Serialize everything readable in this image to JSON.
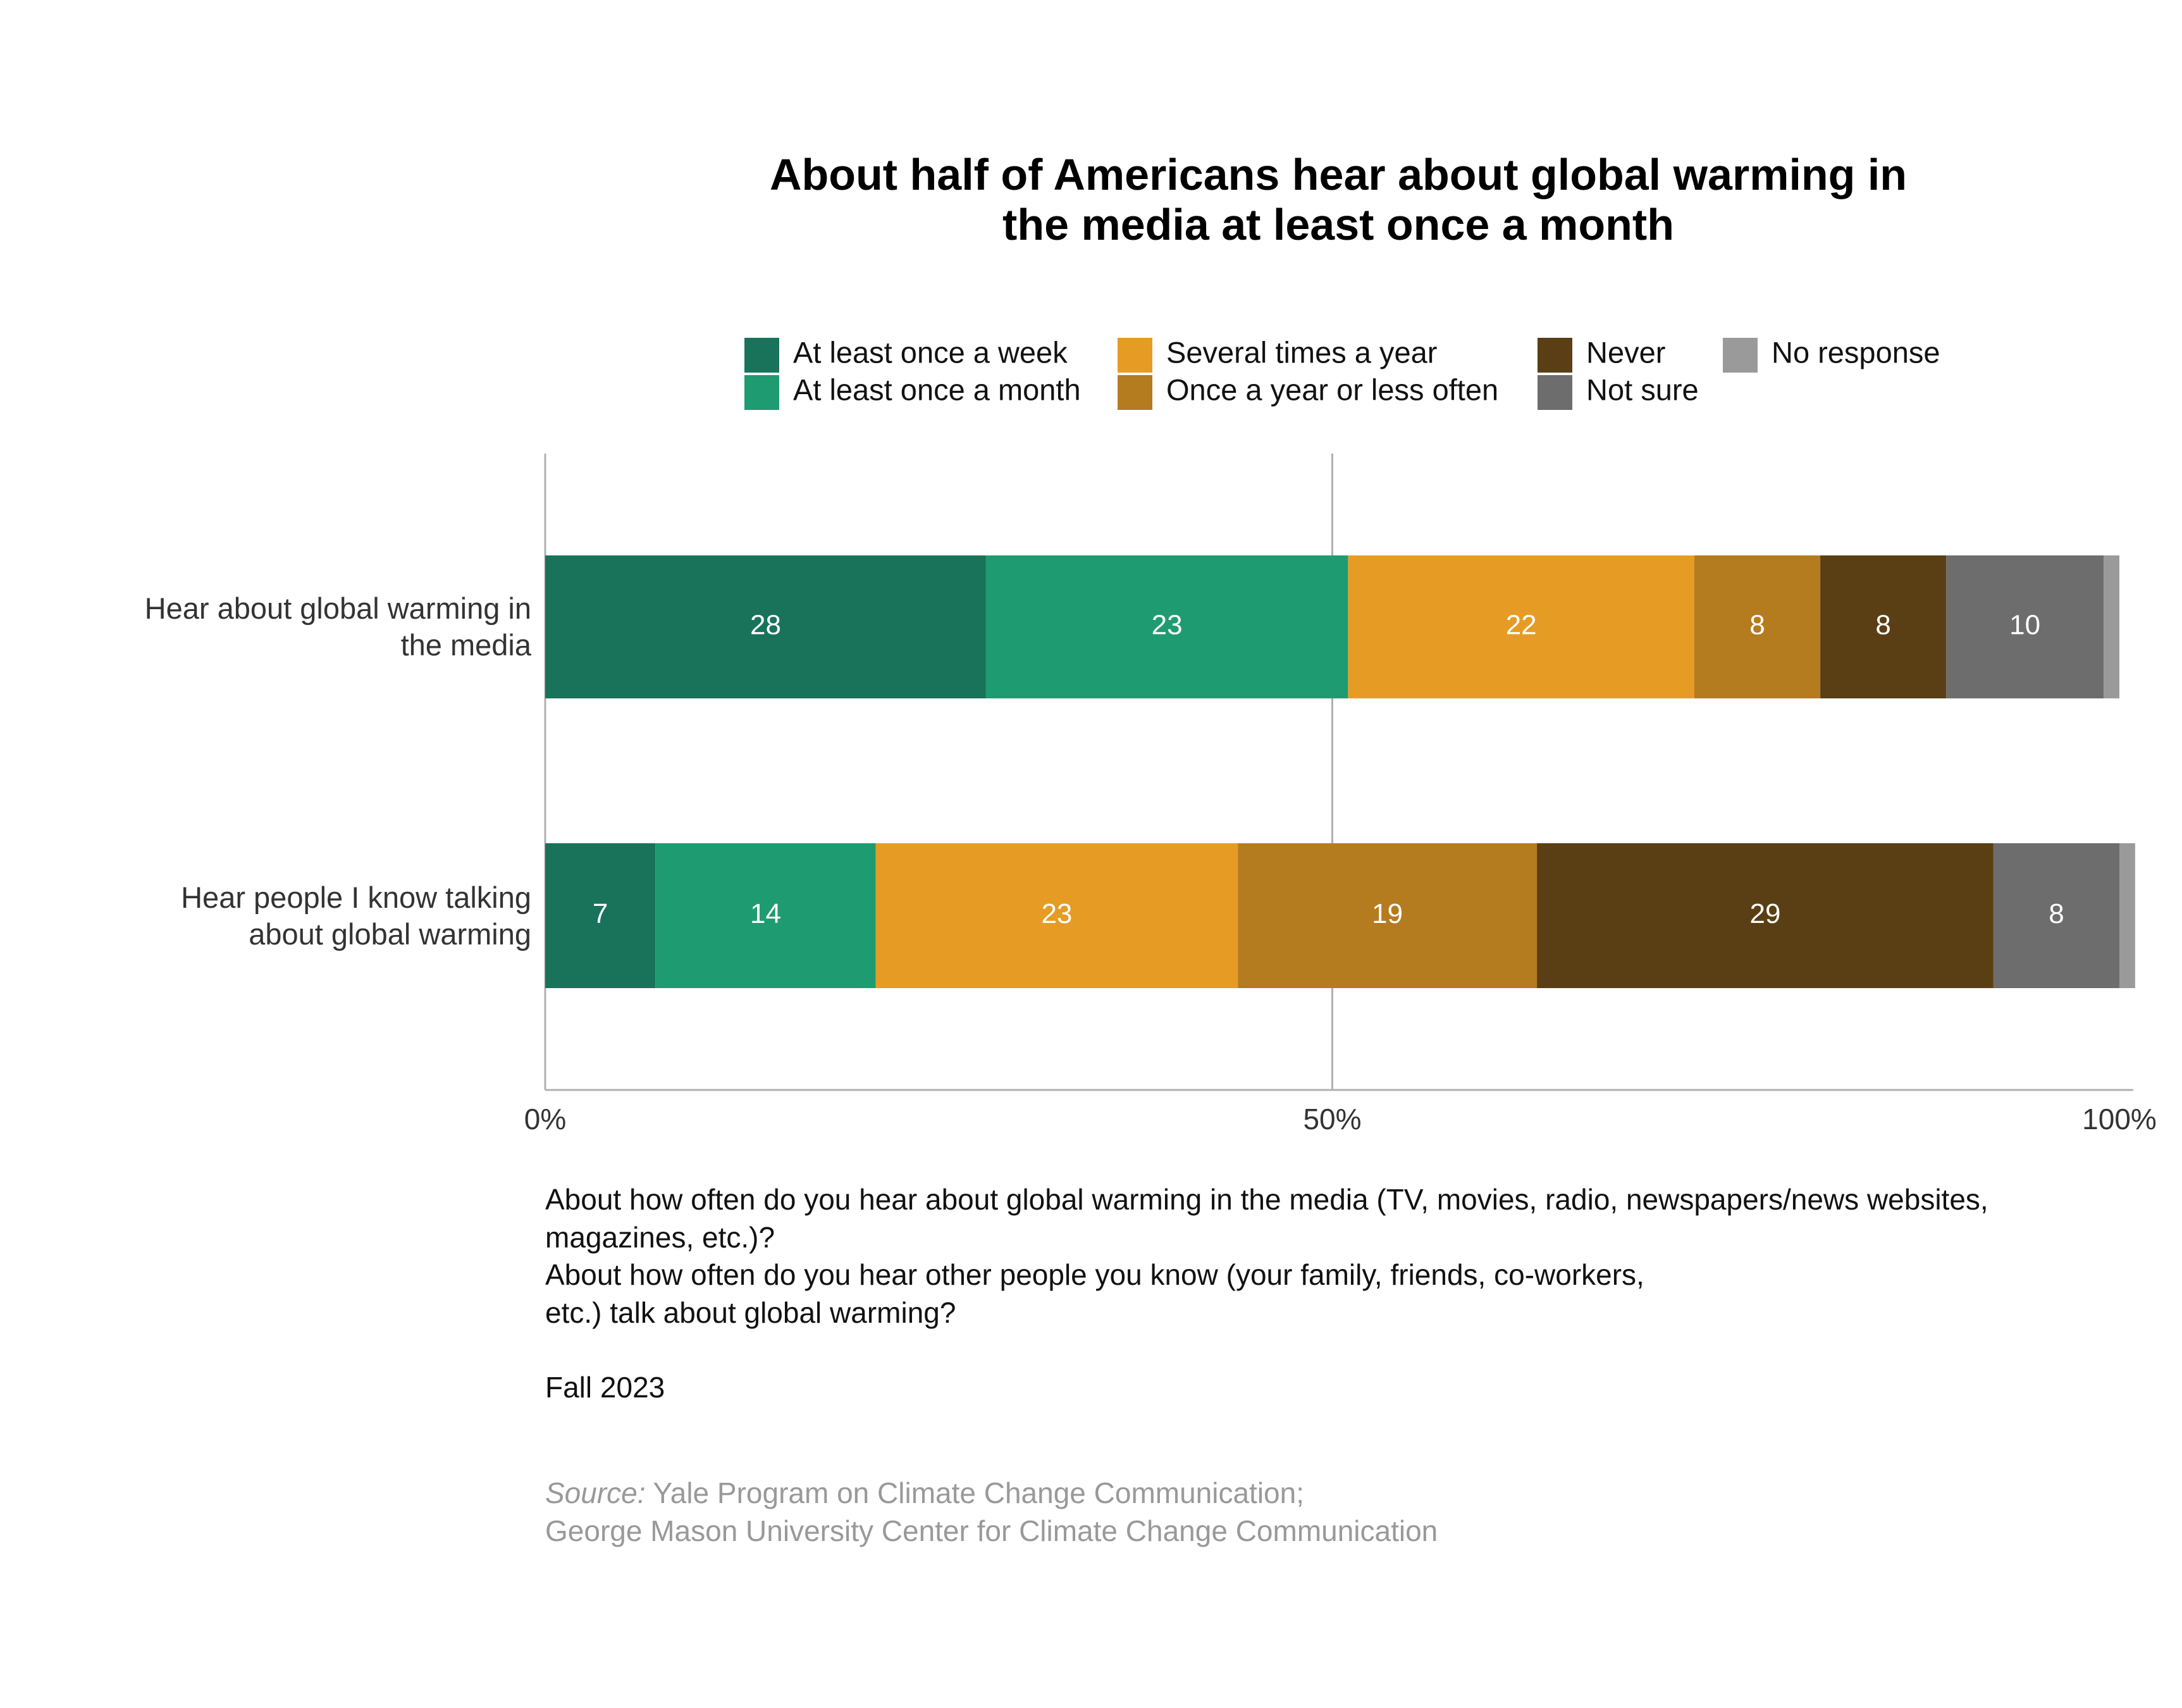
{
  "chart_data": {
    "type": "stacked-bar",
    "orientation": "horizontal",
    "title": "About half of Americans hear about global warming in the media at least once a month",
    "categories": [
      "Hear about global warming in\nthe media",
      "Hear people I know talking\nabout global warming"
    ],
    "series": [
      {
        "name": "At least once a week",
        "color": "#18735a",
        "values": [
          28,
          7
        ]
      },
      {
        "name": "At least once a month",
        "color": "#1f9b72",
        "values": [
          23,
          14
        ]
      },
      {
        "name": "Several times a year",
        "color": "#e69c24",
        "values": [
          22,
          23
        ]
      },
      {
        "name": "Once a year or less often",
        "color": "#b57b1f",
        "values": [
          8,
          19
        ]
      },
      {
        "name": "Never",
        "color": "#5a3f14",
        "values": [
          8,
          29
        ]
      },
      {
        "name": "Not sure",
        "color": "#6d6d6d",
        "values": [
          10,
          8
        ]
      },
      {
        "name": "No response",
        "color": "#9a9a9a",
        "values": [
          1,
          1
        ],
        "show_labels": false
      }
    ],
    "xlim": [
      0,
      100
    ],
    "xticks": [
      {
        "value": 0,
        "label": "0%"
      },
      {
        "value": 50,
        "label": "50%"
      },
      {
        "value": 100,
        "label": "100%"
      }
    ],
    "grid": true,
    "legend": "top",
    "notes": [
      "About how often do you hear about global warming in the media (TV, movies, radio, newspapers/news websites,\nmagazines, etc.)?",
      "About how often do you hear other people you know (your family, friends, co-workers,\netc.) talk about global warming?"
    ],
    "date": "Fall 2023",
    "source_label": "Source:",
    "source": "Yale Program on Climate Change Communication;\nGeorge Mason University Center for Climate Change Communication"
  }
}
